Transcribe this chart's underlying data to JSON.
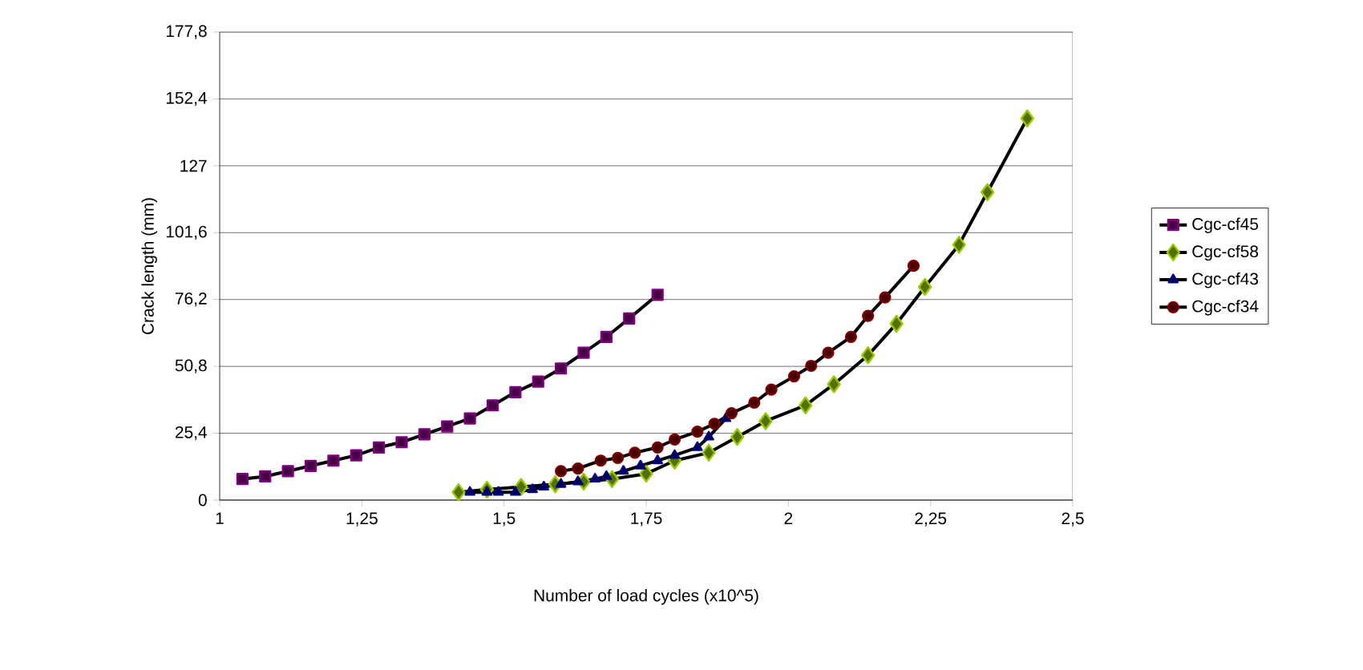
{
  "chart_data": {
    "type": "line",
    "xlabel": "Number of load cycles (x10^5)",
    "ylabel": "Crack length (mm)",
    "xlim": [
      1,
      2.5
    ],
    "ylim": [
      0,
      177.8
    ],
    "xticks": [
      1,
      {
        "value": 1.25,
        "label": "1,25"
      },
      {
        "value": 1.5,
        "label": "1,5"
      },
      {
        "value": 1.75,
        "label": "1,75"
      },
      2,
      {
        "value": 2.25,
        "label": "2,25"
      },
      {
        "value": 2.5,
        "label": "2,5"
      }
    ],
    "yticks": [
      0,
      {
        "value": 25.4,
        "label": "25,4"
      },
      {
        "value": 50.8,
        "label": "50,8"
      },
      {
        "value": 76.2,
        "label": "76,2"
      },
      {
        "value": 101.6,
        "label": "101,6"
      },
      127,
      {
        "value": 152.4,
        "label": "152,4"
      },
      {
        "value": 177.8,
        "label": "177,8"
      }
    ],
    "grid": "y",
    "legend": "right",
    "line_style": "solid",
    "series": [
      {
        "name": "Cgc-cf45",
        "color": "#800080",
        "marker": "square",
        "x": [
          1.04,
          1.08,
          1.12,
          1.16,
          1.2,
          1.24,
          1.28,
          1.32,
          1.36,
          1.4,
          1.44,
          1.48,
          1.52,
          1.56,
          1.6,
          1.64,
          1.68,
          1.72,
          1.77
        ],
        "values": [
          8,
          9,
          11,
          13,
          15,
          17,
          20,
          22,
          25,
          28,
          31,
          36,
          41,
          45,
          50,
          56,
          62,
          69,
          78
        ]
      },
      {
        "name": "Cgc-cf58",
        "color": "#99cc00",
        "marker": "diamond",
        "x": [
          1.42,
          1.47,
          1.53,
          1.59,
          1.64,
          1.69,
          1.75,
          1.8,
          1.86,
          1.91,
          1.96,
          2.03,
          2.08,
          2.14,
          2.19,
          2.24,
          2.3,
          2.35,
          2.42
        ],
        "values": [
          3,
          4,
          5,
          6,
          7,
          8,
          10,
          15,
          18,
          24,
          30,
          36,
          44,
          55,
          67,
          81,
          97,
          117,
          145
        ]
      },
      {
        "name": "Cgc-cf43",
        "color": "#000080",
        "marker": "triangle",
        "x": [
          1.44,
          1.47,
          1.49,
          1.52,
          1.55,
          1.57,
          1.6,
          1.63,
          1.66,
          1.68,
          1.71,
          1.74,
          1.77,
          1.8,
          1.84,
          1.86,
          1.89
        ],
        "values": [
          3,
          3,
          3,
          3,
          4,
          5,
          6,
          7,
          8,
          9,
          11,
          13,
          15,
          17,
          20,
          24,
          31
        ]
      },
      {
        "name": "Cgc-cf34",
        "color": "#800000",
        "marker": "circle",
        "x": [
          1.6,
          1.63,
          1.67,
          1.7,
          1.73,
          1.77,
          1.8,
          1.84,
          1.87,
          1.9,
          1.94,
          1.97,
          2.01,
          2.04,
          2.07,
          2.11,
          2.14,
          2.17,
          2.22
        ],
        "values": [
          11,
          12,
          15,
          16,
          18,
          20,
          23,
          26,
          29,
          33,
          37,
          42,
          47,
          51,
          56,
          62,
          70,
          77,
          89
        ]
      }
    ]
  }
}
